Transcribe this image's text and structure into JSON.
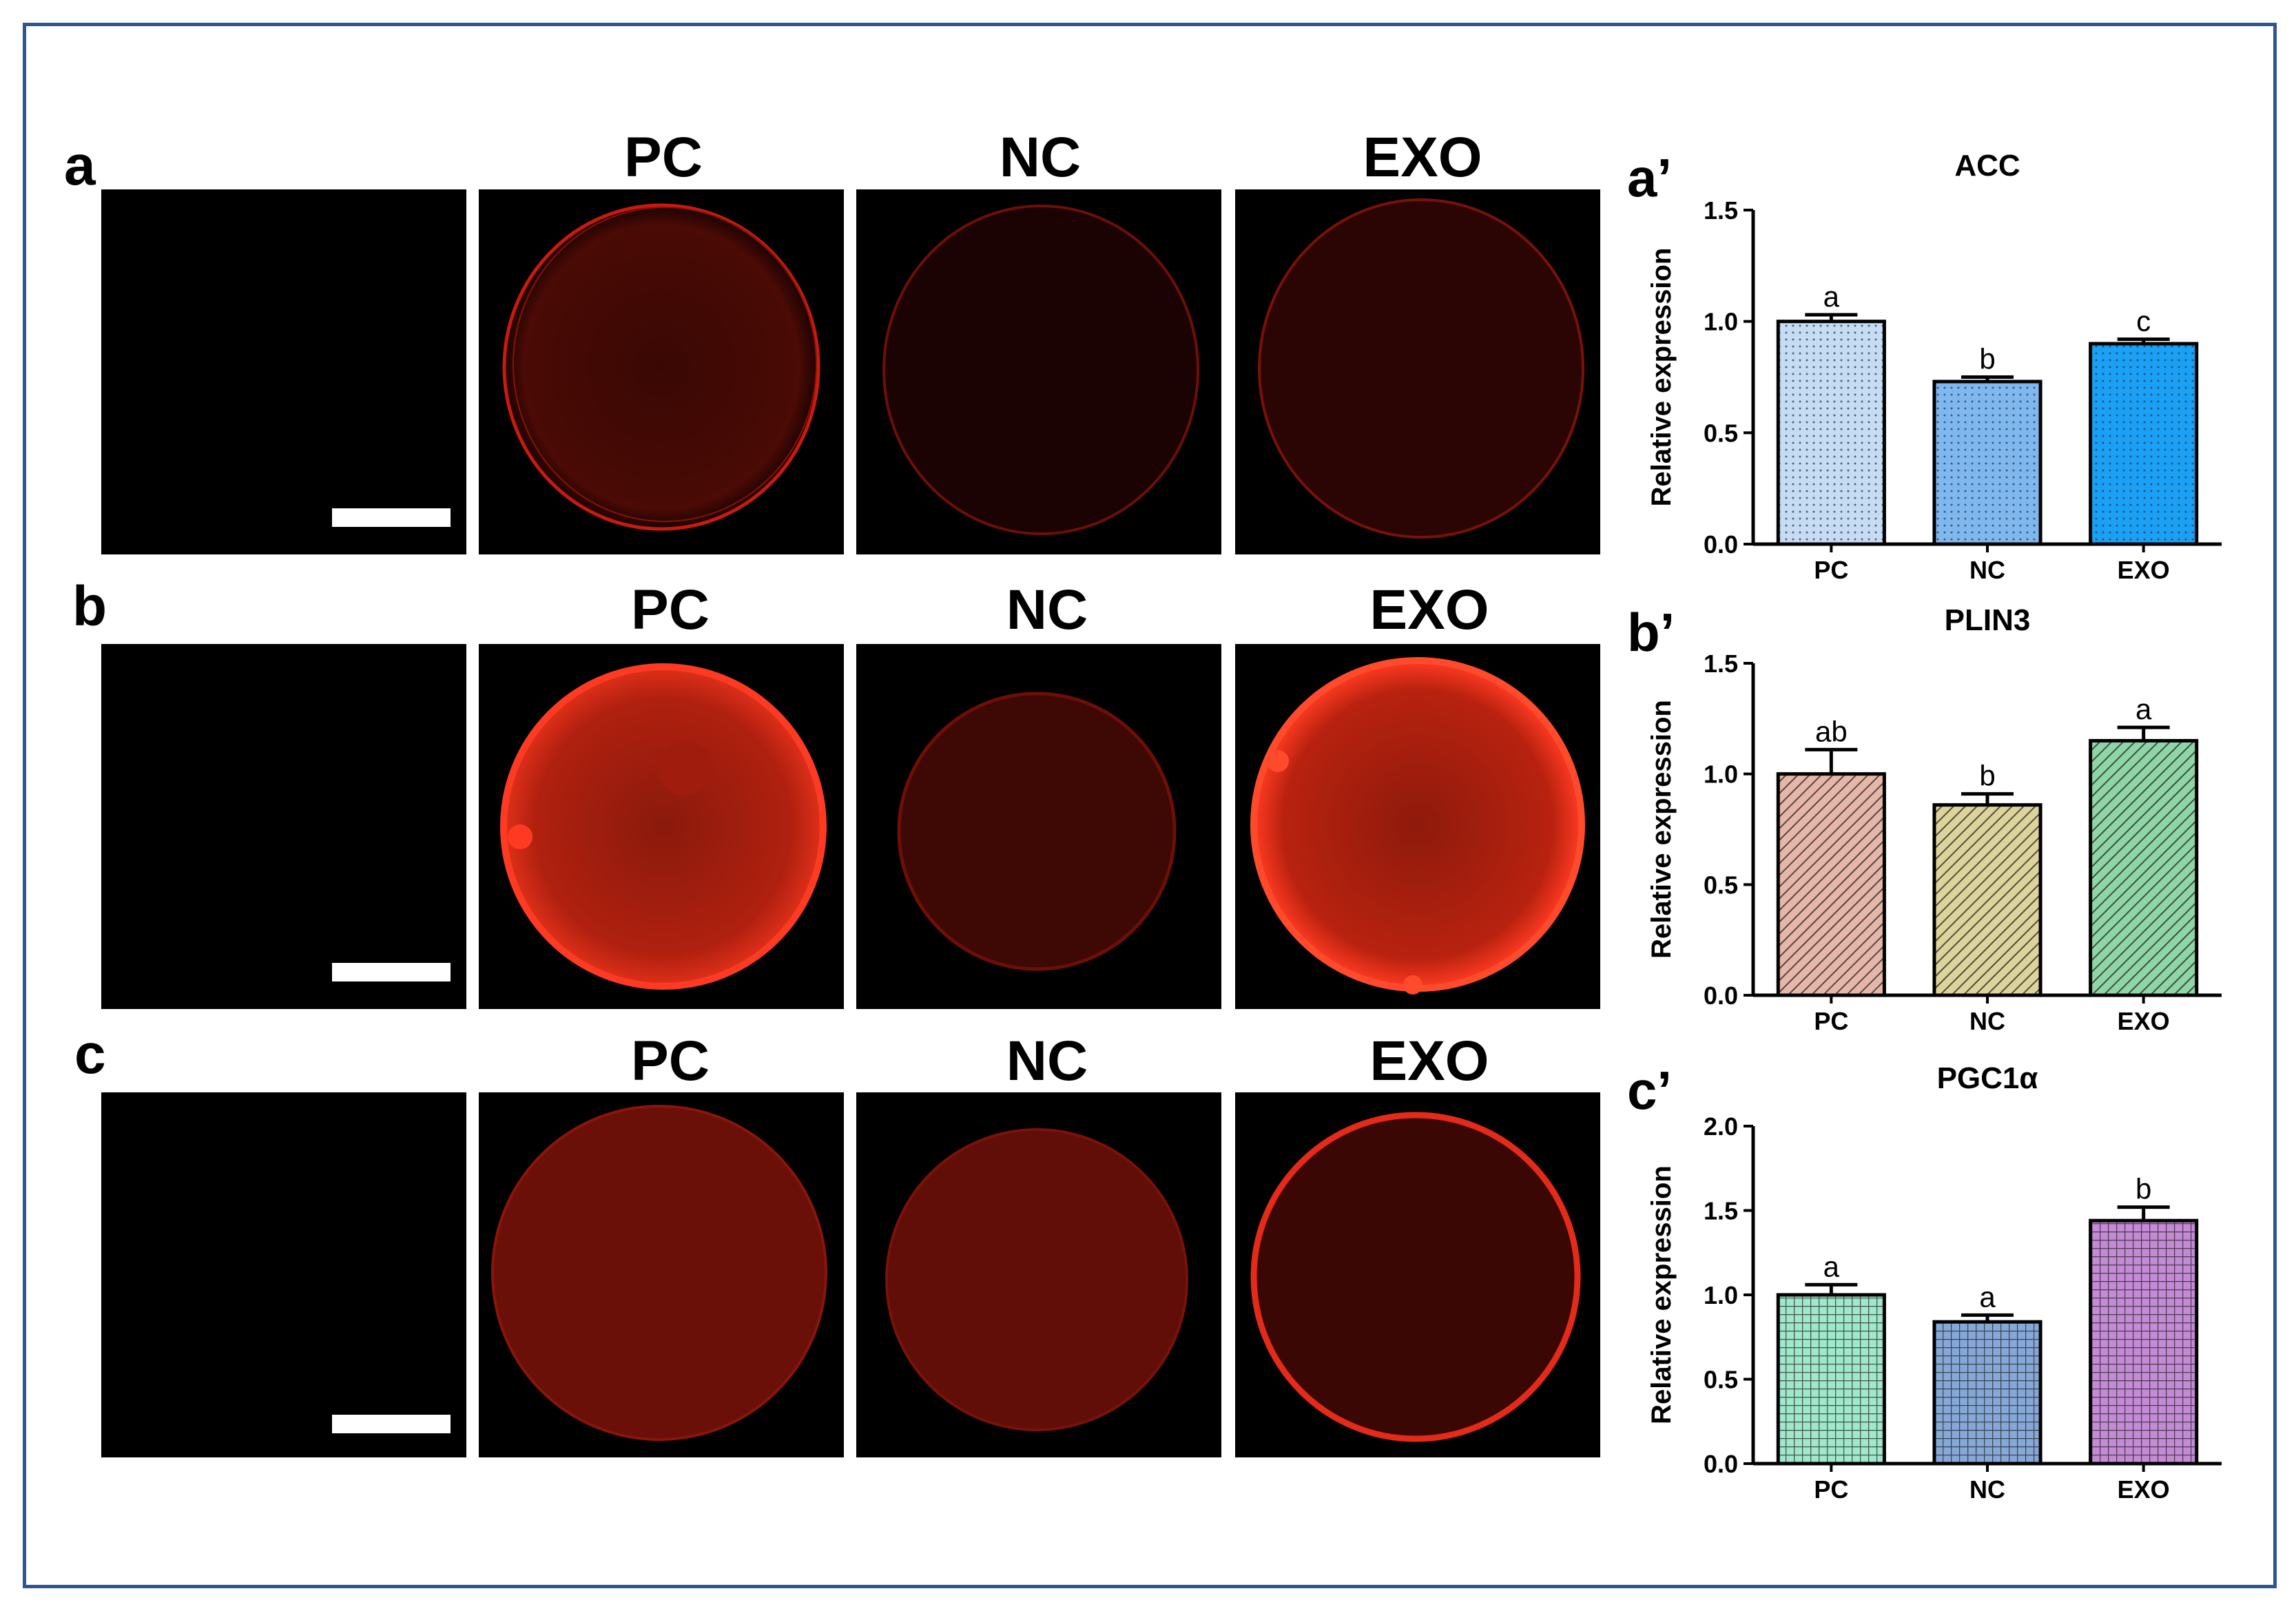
{
  "figure": {
    "rows": [
      {
        "label": "a",
        "titles": [
          "PC",
          "NC",
          "EXO"
        ],
        "cells": [
          "blank",
          "thin-pc",
          "thin-nc",
          "thin-exo"
        ]
      },
      {
        "label": "b",
        "titles": [
          "PC",
          "NC",
          "EXO"
        ],
        "cells": [
          "blank",
          "bright-pc",
          "dim-nc",
          "bright-exo"
        ]
      },
      {
        "label": "c",
        "titles": [
          "PC",
          "NC",
          "EXO"
        ],
        "cells": [
          "blank",
          "granular-pc",
          "granular-nc",
          "ring-exo"
        ]
      }
    ],
    "colors": {
      "frame": "#2f5597",
      "fluorescence": "#ff2a1a"
    }
  },
  "chart_data": [
    {
      "type": "bar",
      "panel_label": "a’",
      "title": "ACC",
      "ylabel": "Relative expression",
      "xlabel": "",
      "categories": [
        "PC",
        "NC",
        "EXO"
      ],
      "values": [
        1.0,
        0.73,
        0.9
      ],
      "errors": [
        0.03,
        0.02,
        0.02
      ],
      "annotations": [
        "a",
        "b",
        "c"
      ],
      "ylim": [
        0,
        1.5
      ],
      "yticks": [
        "0.0",
        "0.5",
        "1.0",
        "1.5"
      ],
      "fills": [
        "#c5dcf2",
        "#7fb8ee",
        "#1aa0f5"
      ],
      "pattern": "dots"
    },
    {
      "type": "bar",
      "panel_label": "b’",
      "title": "PLIN3",
      "ylabel": "Relative expression",
      "xlabel": "",
      "categories": [
        "PC",
        "NC",
        "EXO"
      ],
      "values": [
        1.0,
        0.86,
        1.15
      ],
      "errors": [
        0.11,
        0.05,
        0.06
      ],
      "annotations": [
        "ab",
        "b",
        "a"
      ],
      "ylim": [
        0,
        1.5
      ],
      "yticks": [
        "0.0",
        "0.5",
        "1.0",
        "1.5"
      ],
      "fills": [
        "#e6b7a8",
        "#dcd49a",
        "#8fd6a6"
      ],
      "pattern": "diagonal"
    },
    {
      "type": "bar",
      "panel_label": "c’",
      "title": "PGC1α",
      "ylabel": "Relative expression",
      "xlabel": "",
      "categories": [
        "PC",
        "NC",
        "EXO"
      ],
      "values": [
        1.0,
        0.84,
        1.44
      ],
      "errors": [
        0.06,
        0.04,
        0.08
      ],
      "annotations": [
        "a",
        "a",
        "b"
      ],
      "ylim": [
        0,
        2.0
      ],
      "yticks": [
        "0.0",
        "0.5",
        "1.0",
        "1.5",
        "2.0"
      ],
      "fills": [
        "#9fe8cc",
        "#86a8d8",
        "#c48ad6"
      ],
      "pattern": "grid"
    }
  ]
}
